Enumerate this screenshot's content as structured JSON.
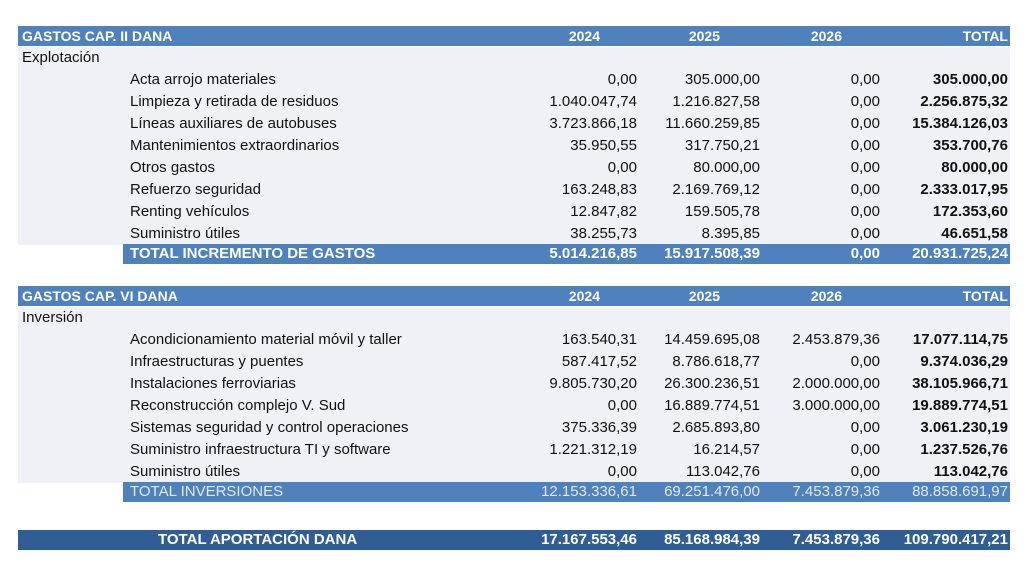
{
  "sections": [
    {
      "header": [
        "GASTOS CAP. II DANA",
        "2024",
        "2025",
        "2026",
        "TOTAL"
      ],
      "group": "Explotación",
      "rows": [
        [
          "Acta arrojo materiales",
          "0,00",
          "305.000,00",
          "0,00",
          "305.000,00"
        ],
        [
          "Limpieza y retirada de residuos",
          "1.040.047,74",
          "1.216.827,58",
          "0,00",
          "2.256.875,32"
        ],
        [
          "Líneas auxiliares de autobuses",
          "3.723.866,18",
          "11.660.259,85",
          "0,00",
          "15.384.126,03"
        ],
        [
          "Mantenimientos extraordinarios",
          "35.950,55",
          "317.750,21",
          "0,00",
          "353.700,76"
        ],
        [
          "Otros gastos",
          "0,00",
          "80.000,00",
          "0,00",
          "80.000,00"
        ],
        [
          "Refuerzo seguridad",
          "163.248,83",
          "2.169.769,12",
          "0,00",
          "2.333.017,95"
        ],
        [
          "Renting vehículos",
          "12.847,82",
          "159.505,78",
          "0,00",
          "172.353,60"
        ],
        [
          "Suministro útiles",
          "38.255,73",
          "8.395,85",
          "0,00",
          "46.651,58"
        ]
      ],
      "total": [
        "TOTAL INCREMENTO DE GASTOS",
        "5.014.216,85",
        "15.917.508,39",
        "0,00",
        "20.931.725,24"
      ]
    },
    {
      "header": [
        "GASTOS CAP. VI DANA",
        "2024",
        "2025",
        "2026",
        "TOTAL"
      ],
      "group": "Inversión",
      "rows": [
        [
          "Acondicionamiento material móvil y taller",
          "163.540,31",
          "14.459.695,08",
          "2.453.879,36",
          "17.077.114,75"
        ],
        [
          "Infraestructuras y puentes",
          "587.417,52",
          "8.786.618,77",
          "0,00",
          "9.374.036,29"
        ],
        [
          "Instalaciones ferroviarias",
          "9.805.730,20",
          "26.300.236,51",
          "2.000.000,00",
          "38.105.966,71"
        ],
        [
          "Reconstrucción complejo V. Sud",
          "0,00",
          "16.889.774,51",
          "3.000.000,00",
          "19.889.774,51"
        ],
        [
          "Sistemas seguridad y control operaciones",
          "375.336,39",
          "2.685.893,80",
          "0,00",
          "3.061.230,19"
        ],
        [
          "Suministro infraestructura TI y software",
          "1.221.312,19",
          "16.214,57",
          "0,00",
          "1.237.526,76"
        ],
        [
          "Suministro útiles",
          "0,00",
          "113.042,76",
          "0,00",
          "113.042,76"
        ]
      ],
      "total": [
        "TOTAL INVERSIONES",
        "12.153.336,61",
        "69.251.476,00",
        "7.453.879,36",
        "88.858.691,97"
      ]
    }
  ],
  "grand_total": [
    "TOTAL APORTACIÓN DANA",
    "17.167.553,46",
    "85.168.984,39",
    "7.453.879,36",
    "109.790.417,21"
  ]
}
